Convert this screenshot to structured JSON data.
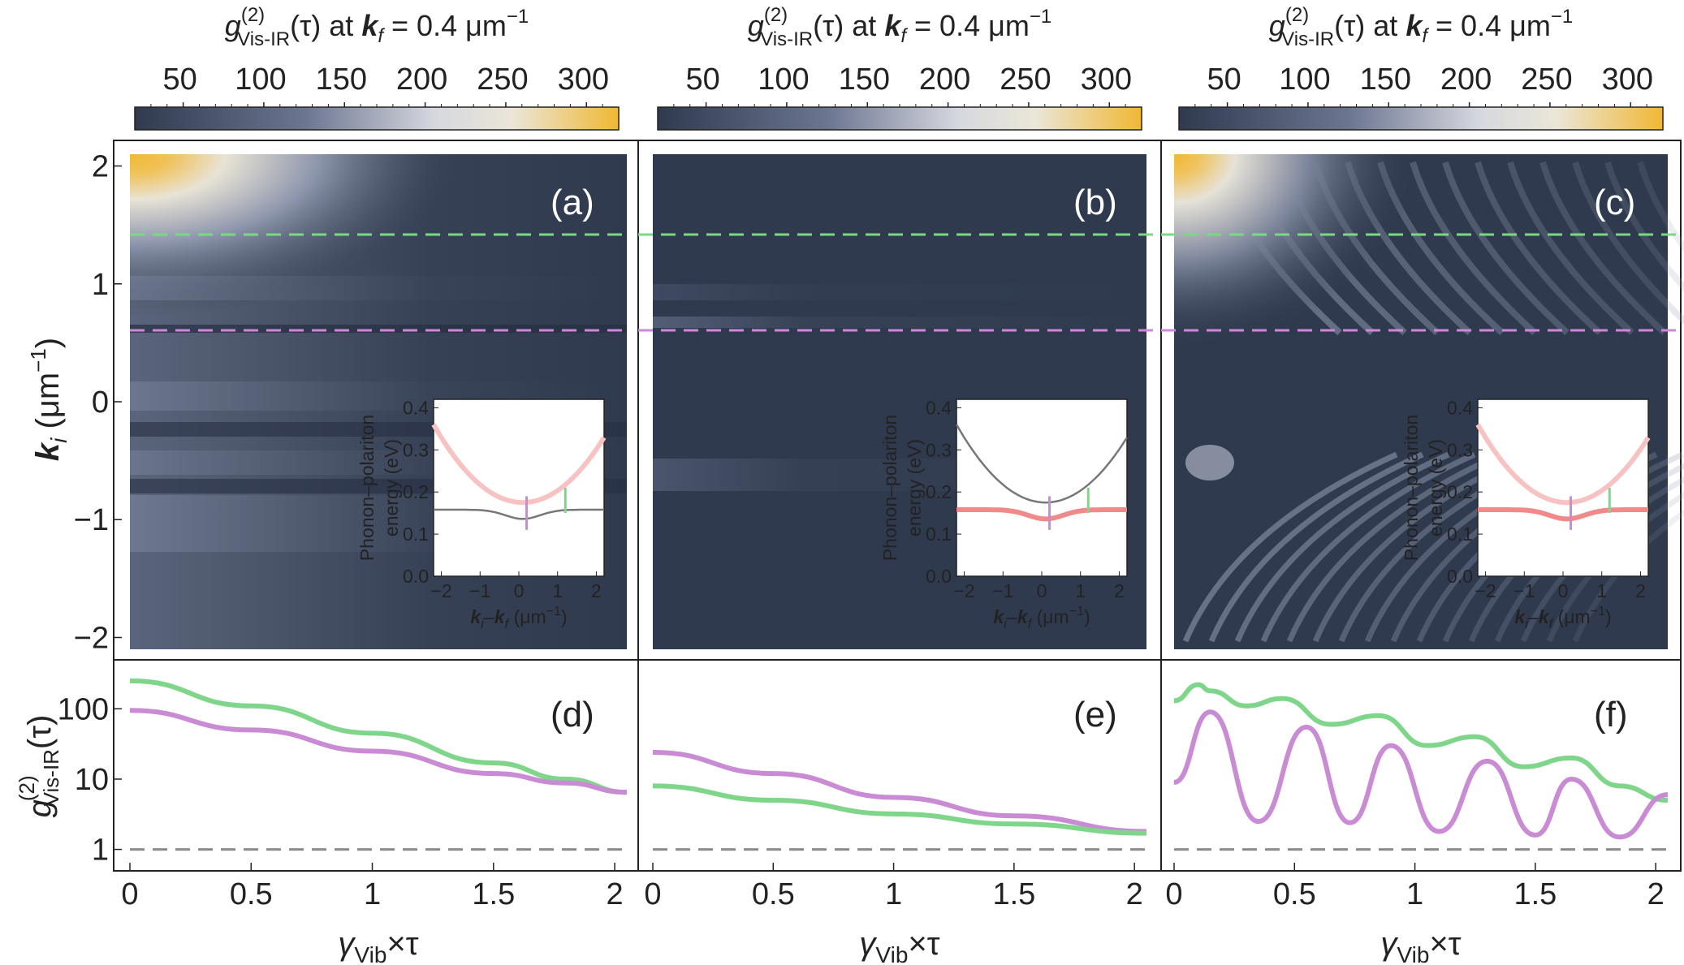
{
  "colors": {
    "map_low": "#2f3a4f",
    "map_mid": "#9ba3b8",
    "map_white": "#e9e9e9",
    "map_high": "#f0b833",
    "green_line": "#7fd68a",
    "violet_line": "#c98bd3",
    "upper_branch": "#f7c2c2",
    "lower_branch": "#f08a8a",
    "baseline": "#8a8a8a"
  },
  "colorbar": {
    "title_prefix": "g",
    "title_sup": "(2)",
    "title_sub": "Vis-IR",
    "title_tail": "(τ) at ",
    "title_k": "k",
    "title_ksub": "f",
    "title_value": " = 0.4 μm",
    "title_exp": "−1",
    "ticks": [
      "50",
      "100",
      "150",
      "200",
      "250",
      "300"
    ]
  },
  "panel_labels": [
    "(a)",
    "(b)",
    "(c)",
    "(d)",
    "(e)",
    "(f)"
  ],
  "top_y_axis": {
    "label_k": "k",
    "label_sub": "i",
    "label_units": " (μm",
    "label_exp": "−1",
    "label_close": ")",
    "ticks": [
      "2",
      "1",
      "0",
      "−1",
      "−2"
    ]
  },
  "bottom_y_axis": {
    "label_g": "g",
    "label_sup": "(2)",
    "label_sub": "Vis-IR",
    "label_tail": "(τ)",
    "ticks": [
      "100",
      "10",
      "1"
    ]
  },
  "x_axis": {
    "label_gamma": "γ",
    "label_sub": "Vib",
    "label_tail": "×τ",
    "ticks": [
      "0",
      "0.5",
      "1",
      "1.5",
      "2"
    ]
  },
  "inset": {
    "ylabel_line1": "Phonon–polariton",
    "ylabel_line2": "energy (eV)",
    "xlabel_k1": "k",
    "xlabel_sub1": "i",
    "xlabel_dash": "–",
    "xlabel_k2": "k",
    "xlabel_sub2": "f",
    "xlabel_units": " (μm",
    "xlabel_exp": "−1",
    "xlabel_close": ")",
    "yticks": [
      "0.4",
      "0.3",
      "0.2",
      "0.1",
      "0.0"
    ],
    "xticks": [
      "−2",
      "−1",
      "0",
      "1",
      "2"
    ]
  },
  "chart_data": [
    {
      "type": "heatmap",
      "panel": "(a)",
      "x_range": [
        0,
        2
      ],
      "y_range": [
        -2.1,
        2.1
      ],
      "colorbar_range": [
        20,
        320
      ],
      "dashed_lines": [
        {
          "y": 1.4,
          "color": "green"
        },
        {
          "y": 0.6,
          "color": "violet"
        }
      ],
      "inset": {
        "x_range": [
          -2.2,
          2.2
        ],
        "y_range": [
          0.0,
          0.42
        ],
        "highlighted_branch": "upper"
      }
    },
    {
      "type": "heatmap",
      "panel": "(b)",
      "x_range": [
        0,
        2
      ],
      "y_range": [
        -2.1,
        2.1
      ],
      "colorbar_range": [
        20,
        320
      ],
      "dashed_lines": [
        {
          "y": 1.4,
          "color": "green"
        },
        {
          "y": 0.6,
          "color": "violet"
        }
      ],
      "inset": {
        "x_range": [
          -2.2,
          2.2
        ],
        "y_range": [
          0.0,
          0.42
        ],
        "highlighted_branch": "lower"
      }
    },
    {
      "type": "heatmap",
      "panel": "(c)",
      "x_range": [
        0,
        2
      ],
      "y_range": [
        -2.1,
        2.1
      ],
      "colorbar_range": [
        20,
        320
      ],
      "dashed_lines": [
        {
          "y": 1.4,
          "color": "green"
        },
        {
          "y": 0.6,
          "color": "violet"
        }
      ],
      "inset": {
        "x_range": [
          -2.2,
          2.2
        ],
        "y_range": [
          0.0,
          0.42
        ],
        "highlighted_branch": "both"
      }
    },
    {
      "type": "line",
      "panel": "(d)",
      "yscale": "log",
      "ylim": [
        0.7,
        300
      ],
      "series": [
        {
          "color": "green",
          "x": [
            0,
            0.5,
            1,
            1.5,
            1.8,
            2.05
          ],
          "y": [
            250,
            110,
            45,
            17,
            10,
            6.5
          ]
        },
        {
          "color": "violet",
          "x": [
            0,
            0.5,
            1,
            1.5,
            1.8,
            2.05
          ],
          "y": [
            95,
            50,
            25,
            12,
            8.8,
            6.5
          ]
        },
        {
          "color": "gray-dashed",
          "x": [
            0,
            2.05
          ],
          "y": [
            1,
            1
          ]
        }
      ]
    },
    {
      "type": "line",
      "panel": "(e)",
      "yscale": "log",
      "ylim": [
        0.7,
        300
      ],
      "series": [
        {
          "color": "violet",
          "x": [
            0,
            0.5,
            1,
            1.5,
            2.05
          ],
          "y": [
            24,
            12,
            5.5,
            3,
            1.8
          ]
        },
        {
          "color": "green",
          "x": [
            0,
            0.5,
            1,
            1.5,
            2.05
          ],
          "y": [
            8,
            5,
            3.2,
            2.3,
            1.7
          ]
        },
        {
          "color": "gray-dashed",
          "x": [
            0,
            2.05
          ],
          "y": [
            1,
            1
          ]
        }
      ]
    },
    {
      "type": "line",
      "panel": "(f)",
      "yscale": "log",
      "ylim": [
        0.7,
        300
      ],
      "series": [
        {
          "color": "green",
          "x": [
            0,
            0.1,
            0.15,
            0.3,
            0.45,
            0.65,
            0.85,
            1.05,
            1.25,
            1.45,
            1.65,
            1.85,
            2.05
          ],
          "y": [
            130,
            220,
            180,
            110,
            140,
            60,
            80,
            30,
            40,
            15,
            20,
            8,
            5
          ]
        },
        {
          "color": "violet",
          "x": [
            0,
            0.15,
            0.35,
            0.55,
            0.73,
            0.9,
            1.1,
            1.3,
            1.5,
            1.65,
            1.85,
            2.05
          ],
          "y": [
            9,
            90,
            2.5,
            55,
            2.4,
            30,
            1.8,
            18,
            1.6,
            10,
            1.5,
            6
          ]
        },
        {
          "color": "gray-dashed",
          "x": [
            0,
            2.05
          ],
          "y": [
            1,
            1
          ]
        }
      ]
    }
  ]
}
